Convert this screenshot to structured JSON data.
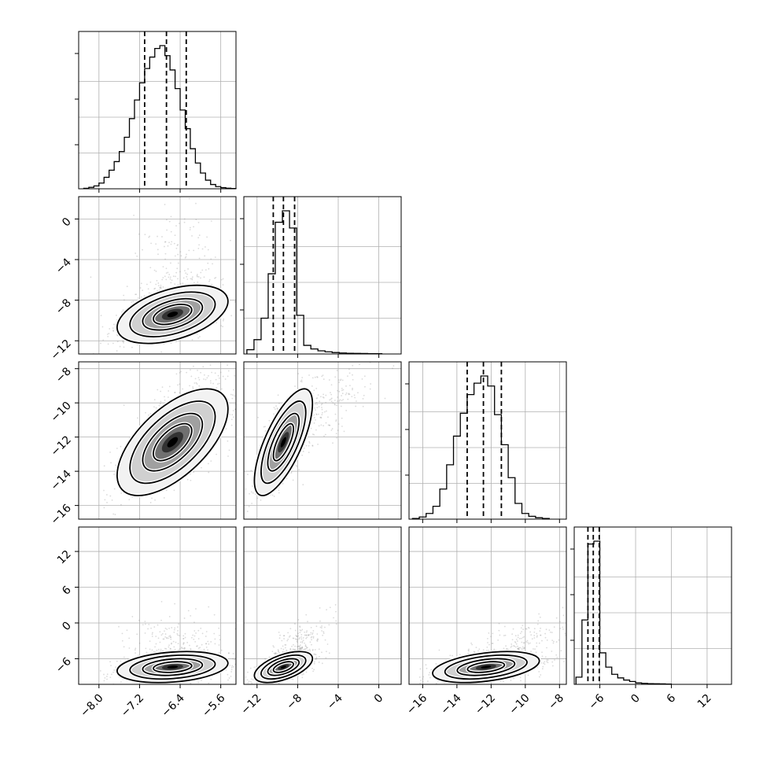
{
  "colors": {
    "frame": "#000000",
    "grid": "#b0b0b0",
    "hist": "#000000",
    "quantile": "#000000",
    "scatter": "#888888"
  },
  "chart_data": {
    "type": "corner",
    "grid": true,
    "params": [
      {
        "range": [
          -8.4,
          -5.3
        ],
        "ticks": [
          "−8.0",
          "−7.2",
          "−6.4",
          "−5.6"
        ],
        "tickvals": [
          -8.0,
          -7.2,
          -6.4,
          -5.6
        ]
      },
      {
        "range": [
          -13.3,
          2.2
        ],
        "ticks": [
          "−12",
          "−8",
          "−4",
          "0"
        ],
        "tickvals": [
          -12,
          -8,
          -4,
          0
        ]
      },
      {
        "range": [
          -16.8,
          -7.6
        ],
        "ticks": [
          "−16",
          "−14",
          "−12",
          "−10",
          "−8"
        ],
        "tickvals": [
          -16,
          -14,
          -12,
          -10,
          -8
        ]
      },
      {
        "range": [
          -10.3,
          16.1
        ],
        "ticks": [
          "−6",
          "0",
          "6",
          "12"
        ],
        "tickvals": [
          -6,
          0,
          6,
          12
        ]
      }
    ],
    "histograms": [
      {
        "param": 0,
        "bins": [
          -8.3,
          -8.2,
          -8.1,
          -8.0,
          -7.9,
          -7.8,
          -7.7,
          -7.6,
          -7.5,
          -7.4,
          -7.3,
          -7.2,
          -7.1,
          -7.0,
          -6.9,
          -6.8,
          -6.7,
          -6.6,
          -6.5,
          -6.4,
          -6.3,
          -6.2,
          -6.1,
          -6.0,
          -5.9,
          -5.8,
          -5.7,
          -5.6,
          -5.5,
          -5.4,
          -5.3
        ],
        "counts": [
          0.003,
          0.01,
          0.02,
          0.04,
          0.08,
          0.13,
          0.19,
          0.26,
          0.36,
          0.49,
          0.62,
          0.74,
          0.84,
          0.92,
          0.98,
          1.0,
          0.93,
          0.83,
          0.7,
          0.55,
          0.42,
          0.28,
          0.18,
          0.11,
          0.06,
          0.03,
          0.015,
          0.008,
          0.004,
          0.002
        ],
        "quantiles": [
          -7.1,
          -6.67,
          -6.28
        ]
      },
      {
        "param": 1,
        "bins": [
          -13.0,
          -12.3,
          -11.6,
          -10.9,
          -10.2,
          -9.5,
          -8.8,
          -8.1,
          -7.4,
          -6.7,
          -6.0,
          -5.3,
          -4.6,
          -3.9,
          -3.2,
          -2.5,
          -1.8,
          -1.1,
          -0.4,
          0.3
        ],
        "counts": [
          0.03,
          0.1,
          0.25,
          0.56,
          0.92,
          1.0,
          0.88,
          0.27,
          0.06,
          0.035,
          0.022,
          0.015,
          0.01,
          0.007,
          0.005,
          0.004,
          0.003,
          0.002,
          0.002
        ],
        "quantiles": [
          -10.4,
          -9.4,
          -8.3
        ]
      },
      {
        "param": 2,
        "bins": [
          -16.6,
          -16.2,
          -15.8,
          -15.4,
          -15.0,
          -14.6,
          -14.2,
          -13.8,
          -13.4,
          -13.0,
          -12.6,
          -12.2,
          -11.8,
          -11.4,
          -11.0,
          -10.6,
          -10.2,
          -9.8,
          -9.4,
          -9.0,
          -8.6
        ],
        "counts": [
          0.005,
          0.015,
          0.04,
          0.09,
          0.21,
          0.38,
          0.58,
          0.74,
          0.87,
          0.95,
          1.0,
          0.93,
          0.73,
          0.52,
          0.29,
          0.11,
          0.04,
          0.02,
          0.01,
          0.005
        ],
        "quantiles": [
          -13.4,
          -12.45,
          -11.4
        ]
      },
      {
        "param": 3,
        "bins": [
          -10.0,
          -9.0,
          -8.0,
          -7.0,
          -6.0,
          -5.0,
          -4.0,
          -3.0,
          -2.0,
          -1.0,
          0.0,
          1.0,
          2.0,
          3.0,
          4.0,
          5.0,
          6.0
        ],
        "counts": [
          0.05,
          0.45,
          0.98,
          1.0,
          0.22,
          0.12,
          0.07,
          0.045,
          0.03,
          0.02,
          0.01,
          0.007,
          0.005,
          0.004,
          0.003,
          0.002
        ],
        "quantiles": [
          -8.0,
          -7.1,
          -6.1
        ]
      }
    ],
    "pairs": [
      {
        "x": 0,
        "y": 1,
        "center": [
          -6.55,
          -9.4
        ],
        "sd": [
          0.42,
          1.1
        ],
        "corr": 0.45,
        "outlier_dir": [
          0,
          1
        ]
      },
      {
        "x": 0,
        "y": 2,
        "center": [
          -6.55,
          -12.3
        ],
        "sd": [
          0.42,
          1.2
        ],
        "corr": 0.62,
        "outlier_dir": [
          0.3,
          0.5
        ]
      },
      {
        "x": 1,
        "y": 2,
        "center": [
          -9.4,
          -12.3
        ],
        "sd": [
          1.1,
          1.2
        ],
        "corr": 0.72,
        "outlier_dir": [
          1,
          0.4
        ]
      },
      {
        "x": 0,
        "y": 3,
        "center": [
          -6.55,
          -7.4
        ],
        "sd": [
          0.42,
          1.0
        ],
        "corr": 0.25,
        "outlier_dir": [
          0,
          1
        ]
      },
      {
        "x": 1,
        "y": 3,
        "center": [
          -9.4,
          -7.4
        ],
        "sd": [
          1.1,
          1.0
        ],
        "corr": 0.55,
        "outlier_dir": [
          0.35,
          1
        ]
      },
      {
        "x": 2,
        "y": 3,
        "center": [
          -12.3,
          -7.4
        ],
        "sd": [
          1.2,
          1.0
        ],
        "corr": 0.4,
        "outlier_dir": [
          0.4,
          1
        ]
      }
    ]
  }
}
